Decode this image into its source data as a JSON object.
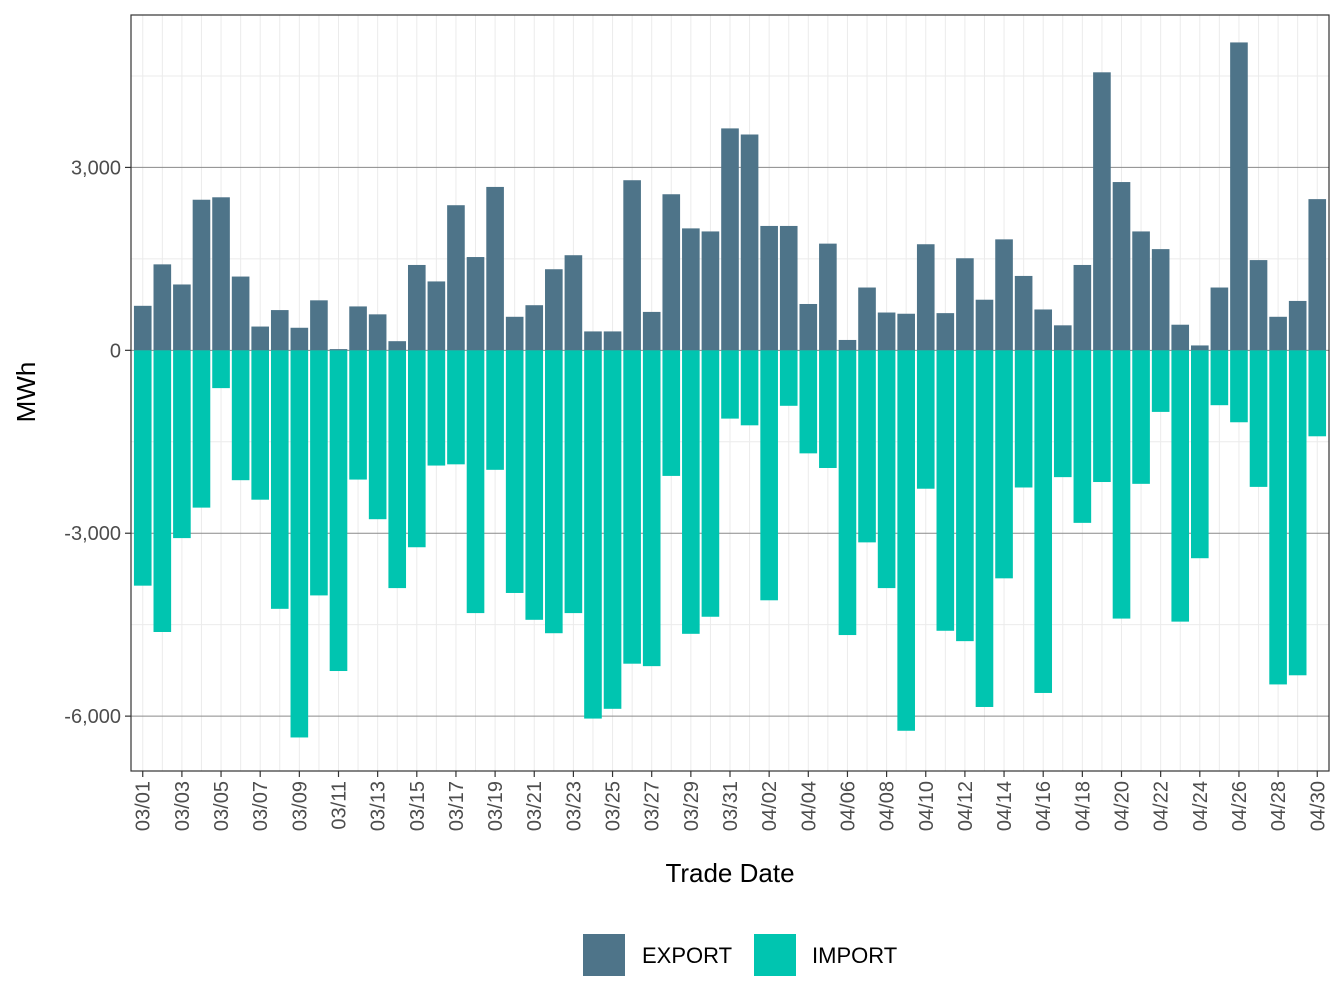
{
  "chart_data": {
    "type": "bar",
    "stacked": true,
    "xlabel": "Trade Date",
    "ylabel": "MWh",
    "ylim": [
      -6900,
      5500
    ],
    "yticks": [
      -6000,
      -3000,
      0,
      3000
    ],
    "ytick_labels": [
      "-6,000",
      "-3,000",
      "0",
      "3,000"
    ],
    "grid": true,
    "legend_position": "bottom",
    "categories": [
      "03/01",
      "03/02",
      "03/03",
      "03/04",
      "03/05",
      "03/06",
      "03/07",
      "03/08",
      "03/09",
      "03/10",
      "03/11",
      "03/12",
      "03/13",
      "03/14",
      "03/15",
      "03/16",
      "03/17",
      "03/18",
      "03/19",
      "03/20",
      "03/21",
      "03/22",
      "03/23",
      "03/24",
      "03/25",
      "03/26",
      "03/27",
      "03/28",
      "03/29",
      "03/30",
      "03/31",
      "04/01",
      "04/02",
      "04/03",
      "04/04",
      "04/05",
      "04/06",
      "04/07",
      "04/08",
      "04/09",
      "04/10",
      "04/11",
      "04/12",
      "04/13",
      "04/14",
      "04/15",
      "04/16",
      "04/17",
      "04/18",
      "04/19",
      "04/20",
      "04/21",
      "04/22",
      "04/23",
      "04/24",
      "04/25",
      "04/26",
      "04/27",
      "04/28",
      "04/29",
      "04/30"
    ],
    "tick_labels": [
      "03/01",
      "03/03",
      "03/05",
      "03/07",
      "03/09",
      "03/11",
      "03/13",
      "03/15",
      "03/17",
      "03/19",
      "03/21",
      "03/23",
      "03/25",
      "03/27",
      "03/29",
      "03/31",
      "04/02",
      "04/04",
      "04/06",
      "04/08",
      "04/10",
      "04/12",
      "04/14",
      "04/16",
      "04/18",
      "04/20",
      "04/22",
      "04/24",
      "04/26",
      "04/28",
      "04/30"
    ],
    "series": [
      {
        "name": "EXPORT",
        "color": "#4e7489",
        "values": [
          730,
          1410,
          1080,
          2470,
          2510,
          1210,
          390,
          660,
          370,
          820,
          20,
          720,
          590,
          150,
          1400,
          1130,
          2380,
          1530,
          2680,
          550,
          740,
          1330,
          1560,
          310,
          310,
          2790,
          630,
          2560,
          2000,
          1950,
          3640,
          3540,
          2040,
          2040,
          760,
          1750,
          170,
          1030,
          620,
          600,
          1740,
          610,
          1510,
          830,
          1820,
          1220,
          670,
          410,
          1400,
          4560,
          2760,
          1950,
          1660,
          420,
          80,
          1030,
          5050,
          1480,
          550,
          810,
          2480
        ]
      },
      {
        "name": "IMPORT",
        "color": "#00c5b0",
        "values": [
          -3860,
          -4620,
          -3080,
          -2580,
          -620,
          -2130,
          -2450,
          -4240,
          -6350,
          -4020,
          -5260,
          -2120,
          -2770,
          -3900,
          -3230,
          -1890,
          -1870,
          -4310,
          -1960,
          -3980,
          -4420,
          -4640,
          -4310,
          -6040,
          -5880,
          -5140,
          -5180,
          -2060,
          -4650,
          -4370,
          -1120,
          -1230,
          -4100,
          -910,
          -1690,
          -1930,
          -4670,
          -3150,
          -3900,
          -6240,
          -2270,
          -4600,
          -4770,
          -5850,
          -3740,
          -2250,
          -5620,
          -2080,
          -2830,
          -2160,
          -4400,
          -2190,
          -1010,
          -4450,
          -3410,
          -900,
          -1180,
          -2240,
          -5480,
          -5330,
          -1410
        ]
      }
    ]
  }
}
